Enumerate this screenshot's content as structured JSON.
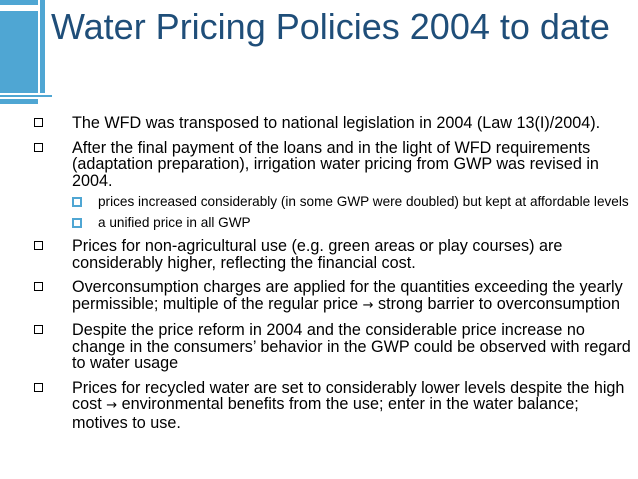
{
  "slide": {
    "title": "Water Pricing Policies 2004 to date",
    "bullets": [
      {
        "text": "The WFD was transposed to national legislation in 2004 (Law 13(I)/2004)."
      },
      {
        "text": "After the final payment of the loans and in the light of WFD requirements (adaptation preparation), irrigation water pricing from GWP was revised in 2004.",
        "sub": [
          {
            "text": "prices increased considerably (in some GWP were doubled) but kept at affordable levels"
          },
          {
            "text": "a unified price in all GWP"
          }
        ]
      },
      {
        "text": "Prices for non-agricultural use (e.g. green areas or play courses) are considerably higher, reflecting the financial cost."
      },
      {
        "before": "Overconsumption charges are applied for the quantities exceeding the yearly permissible; multiple of the regular price",
        "arrow": "→",
        "after": "strong barrier to overconsumption"
      },
      {
        "text": "Despite the price reform in 2004 and the considerable price increase no change in the consumers’ behavior in the GWP could be observed with regard to water usage"
      },
      {
        "before": "Prices for recycled water are set to considerably lower levels despite the high cost",
        "arrow": "→",
        "after": "environmental benefits from the use; enter in the water balance; motives to use."
      }
    ]
  },
  "theme": {
    "title_color": "#1f4e79",
    "accent_color": "#4fa6d3",
    "bullet_icon": "square-outline-icon",
    "sub_bullet_icon": "square-accent-icon"
  }
}
